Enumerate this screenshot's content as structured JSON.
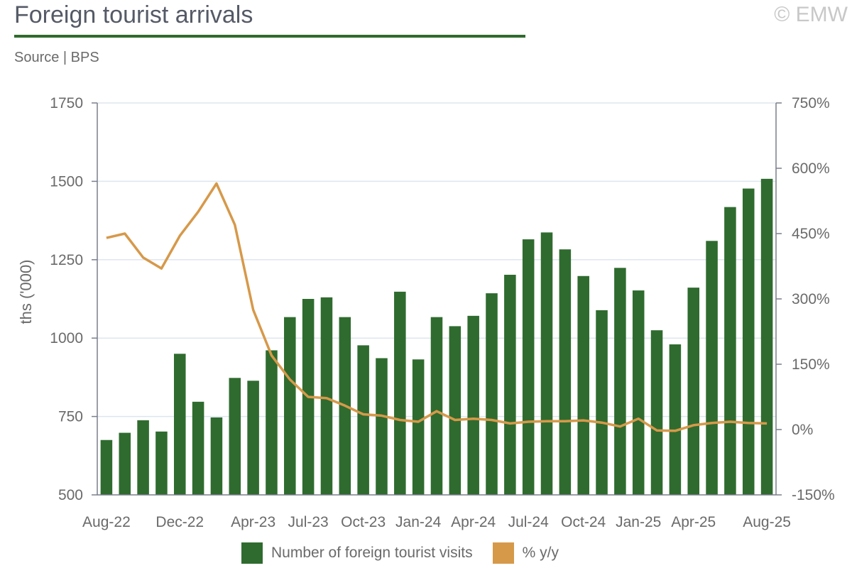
{
  "header": {
    "title": "Foreign tourist arrivals",
    "watermark": "© EMW",
    "source": "Source | BPS"
  },
  "colors": {
    "bar": "#2f6b2f",
    "line": "#d6994a",
    "grid": "#dde6ef",
    "axis": "#7a7f8c",
    "title_rule": "#2f6b2f"
  },
  "chart_data": {
    "type": "bar",
    "ylabel": "ths ('000)",
    "ylim": [
      500,
      1750
    ],
    "y_ticks": [
      "500",
      "750",
      "1000",
      "1250",
      "1500",
      "1750"
    ],
    "y2lim": [
      -150,
      750
    ],
    "y2_ticks": [
      "-150%",
      "0%",
      "150%",
      "300%",
      "450%",
      "600%",
      "750%"
    ],
    "x_tick_labels": [
      {
        "label": "Aug-22",
        "index": 0
      },
      {
        "label": "Dec-22",
        "index": 4
      },
      {
        "label": "Apr-23",
        "index": 8
      },
      {
        "label": "Jul-23",
        "index": 11
      },
      {
        "label": "Oct-23",
        "index": 14
      },
      {
        "label": "Jan-24",
        "index": 17
      },
      {
        "label": "Apr-24",
        "index": 20
      },
      {
        "label": "Jul-24",
        "index": 23
      },
      {
        "label": "Oct-24",
        "index": 26
      },
      {
        "label": "Jan-25",
        "index": 29
      },
      {
        "label": "Apr-25",
        "index": 32
      },
      {
        "label": "Aug-25",
        "index": 36
      }
    ],
    "categories": [
      "Aug-22",
      "Sep-22",
      "Oct-22",
      "Nov-22",
      "Dec-22",
      "Jan-23",
      "Feb-23",
      "Mar-23",
      "Apr-23",
      "May-23",
      "Jun-23",
      "Jul-23",
      "Aug-23",
      "Sep-23",
      "Oct-23",
      "Nov-23",
      "Dec-23",
      "Jan-24",
      "Feb-24",
      "Mar-24",
      "Apr-24",
      "May-24",
      "Jun-24",
      "Jul-24",
      "Aug-24",
      "Sep-24",
      "Oct-24",
      "Nov-24",
      "Dec-24",
      "Jan-25",
      "Feb-25",
      "Mar-25",
      "Apr-25",
      "May-25",
      "Jun-25",
      "Jul-25",
      "Aug-25"
    ],
    "series": [
      {
        "name": "Number of foreign tourist visits",
        "type": "bar",
        "axis": "left",
        "values": [
          675,
          698,
          738,
          702,
          950,
          797,
          747,
          873,
          864,
          961,
          1067,
          1125,
          1130,
          1067,
          977,
          936,
          1148,
          932,
          1067,
          1038,
          1071,
          1143,
          1202,
          1315,
          1337,
          1283,
          1198,
          1089,
          1224,
          1152,
          1025,
          980,
          1161,
          1310,
          1418,
          1477,
          1508
        ]
      },
      {
        "name": "% y/y",
        "type": "line",
        "axis": "right",
        "values": [
          440,
          450,
          395,
          370,
          445,
          500,
          565,
          470,
          275,
          170,
          115,
          75,
          72,
          55,
          35,
          32,
          22,
          18,
          42,
          22,
          25,
          22,
          14,
          18,
          19,
          19,
          21,
          16,
          7,
          25,
          -2,
          -3,
          10,
          15,
          18,
          15,
          14
        ]
      }
    ],
    "legend_position": "bottom",
    "grid": true
  }
}
